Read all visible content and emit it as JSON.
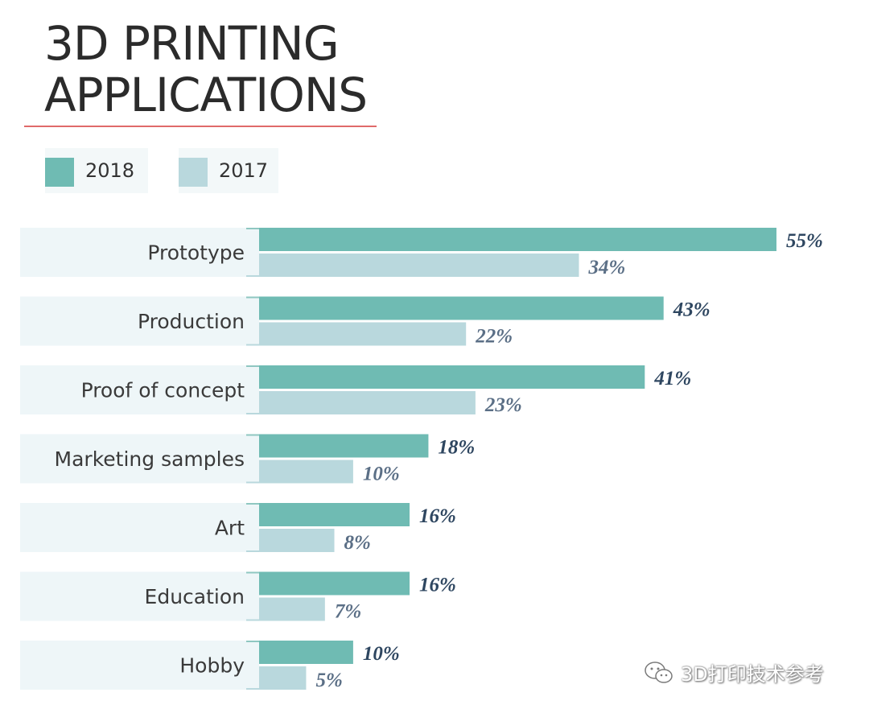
{
  "title_lines": [
    "3D PRINTING",
    "APPLICATIONS"
  ],
  "colors": {
    "series_2018": "#6fbbb3",
    "series_2017": "#b9d8dd",
    "label_2018": "#2e4660",
    "label_2017": "#5b6f86",
    "title_rule": "#e06a6a",
    "row_band": "#eef6f8"
  },
  "legend": [
    {
      "label": "2018",
      "color": "#6fbbb3"
    },
    {
      "label": "2017",
      "color": "#b9d8dd"
    }
  ],
  "watermark": {
    "text": "3D打印技术参考",
    "icon": "wechat-icon"
  },
  "chart_data": {
    "type": "bar",
    "orientation": "horizontal",
    "categories": [
      "Prototype",
      "Production",
      "Proof of concept",
      "Marketing samples",
      "Art",
      "Education",
      "Hobby"
    ],
    "series": [
      {
        "name": "2018",
        "values": [
          55,
          43,
          41,
          18,
          16,
          16,
          10
        ],
        "labels": [
          "55%",
          "43%",
          "41%",
          "18%",
          "16%",
          "16%",
          "10%"
        ]
      },
      {
        "name": "2017",
        "values": [
          34,
          22,
          23,
          10,
          8,
          7,
          5
        ],
        "labels": [
          "34%",
          "22%",
          "23%",
          "10%",
          "8%",
          "7%",
          "5%"
        ]
      }
    ],
    "title": "3D PRINTING APPLICATIONS",
    "xlabel": "",
    "ylabel": "",
    "value_unit": "%",
    "xlim": [
      0,
      55
    ],
    "grid": false,
    "legend_position": "top-left"
  }
}
